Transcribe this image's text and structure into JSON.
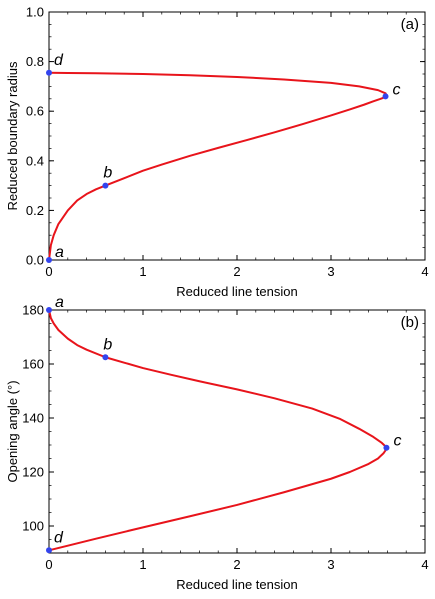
{
  "chart_data": [
    {
      "type": "line",
      "panel_label": "(a)",
      "xlabel": "Reduced line tension",
      "ylabel": "Reduced boundary radius",
      "xlim": [
        0,
        4
      ],
      "ylim": [
        0,
        1.0
      ],
      "xticks": [
        "0",
        "1",
        "2",
        "3",
        "4"
      ],
      "yticks": [
        "0.0",
        "0.2",
        "0.4",
        "0.6",
        "0.8",
        "1.0"
      ],
      "line_color": "#e8141b",
      "point_color": "#3344ee",
      "series": [
        {
          "x": [
            0,
            0.02,
            0.05,
            0.1,
            0.2,
            0.3,
            0.4,
            0.5,
            0.6,
            0.8,
            1.0,
            1.2,
            1.5,
            1.8,
            2.1,
            2.4,
            2.7,
            3.0,
            3.2,
            3.35,
            3.45,
            3.52,
            3.57,
            3.59,
            3.58,
            3.5,
            3.3,
            3.0,
            2.5,
            2.0,
            1.5,
            1.0,
            0.5,
            0.2,
            0
          ],
          "y": [
            0.0,
            0.06,
            0.1,
            0.145,
            0.2,
            0.24,
            0.266,
            0.285,
            0.3,
            0.33,
            0.36,
            0.385,
            0.42,
            0.452,
            0.483,
            0.515,
            0.548,
            0.583,
            0.607,
            0.626,
            0.64,
            0.649,
            0.656,
            0.665,
            0.672,
            0.685,
            0.7,
            0.714,
            0.728,
            0.738,
            0.745,
            0.75,
            0.753,
            0.754,
            0.755
          ]
        }
      ],
      "points": [
        {
          "label": "a",
          "x": 0,
          "y": 0.0
        },
        {
          "label": "b",
          "x": 0.6,
          "y": 0.3
        },
        {
          "label": "c",
          "x": 3.58,
          "y": 0.66
        },
        {
          "label": "d",
          "x": 0,
          "y": 0.755
        }
      ]
    },
    {
      "type": "line",
      "panel_label": "(b)",
      "xlabel": "Reduced line tension",
      "ylabel": "Opening angle (°)",
      "xlim": [
        0,
        4
      ],
      "ylim": [
        90,
        180
      ],
      "xticks": [
        "0",
        "1",
        "2",
        "3",
        "4"
      ],
      "yticks": [
        "100",
        "120",
        "140",
        "160",
        "180"
      ],
      "line_color": "#e8141b",
      "point_color": "#3344ee",
      "series": [
        {
          "x": [
            0,
            0.02,
            0.05,
            0.1,
            0.2,
            0.3,
            0.4,
            0.6,
            0.8,
            1.0,
            1.3,
            1.6,
            2.0,
            2.4,
            2.8,
            3.1,
            3.3,
            3.45,
            3.54,
            3.58,
            3.59,
            3.56,
            3.5,
            3.4,
            3.2,
            3.0,
            2.5,
            2.0,
            1.5,
            1.0,
            0.5,
            0.2,
            0
          ],
          "y": [
            180,
            177,
            175,
            172.6,
            169.4,
            167,
            165.3,
            162.5,
            160.5,
            158.5,
            156,
            153.6,
            150.6,
            147.3,
            143.5,
            139.6,
            136,
            133,
            130.8,
            129.5,
            128.5,
            127,
            125,
            123,
            120,
            117.5,
            112.5,
            107.8,
            103.6,
            99.5,
            95.3,
            92.7,
            91
          ]
        }
      ],
      "points": [
        {
          "label": "a",
          "x": 0,
          "y": 180
        },
        {
          "label": "b",
          "x": 0.6,
          "y": 162.5
        },
        {
          "label": "c",
          "x": 3.59,
          "y": 129
        },
        {
          "label": "d",
          "x": 0,
          "y": 91
        }
      ]
    }
  ]
}
